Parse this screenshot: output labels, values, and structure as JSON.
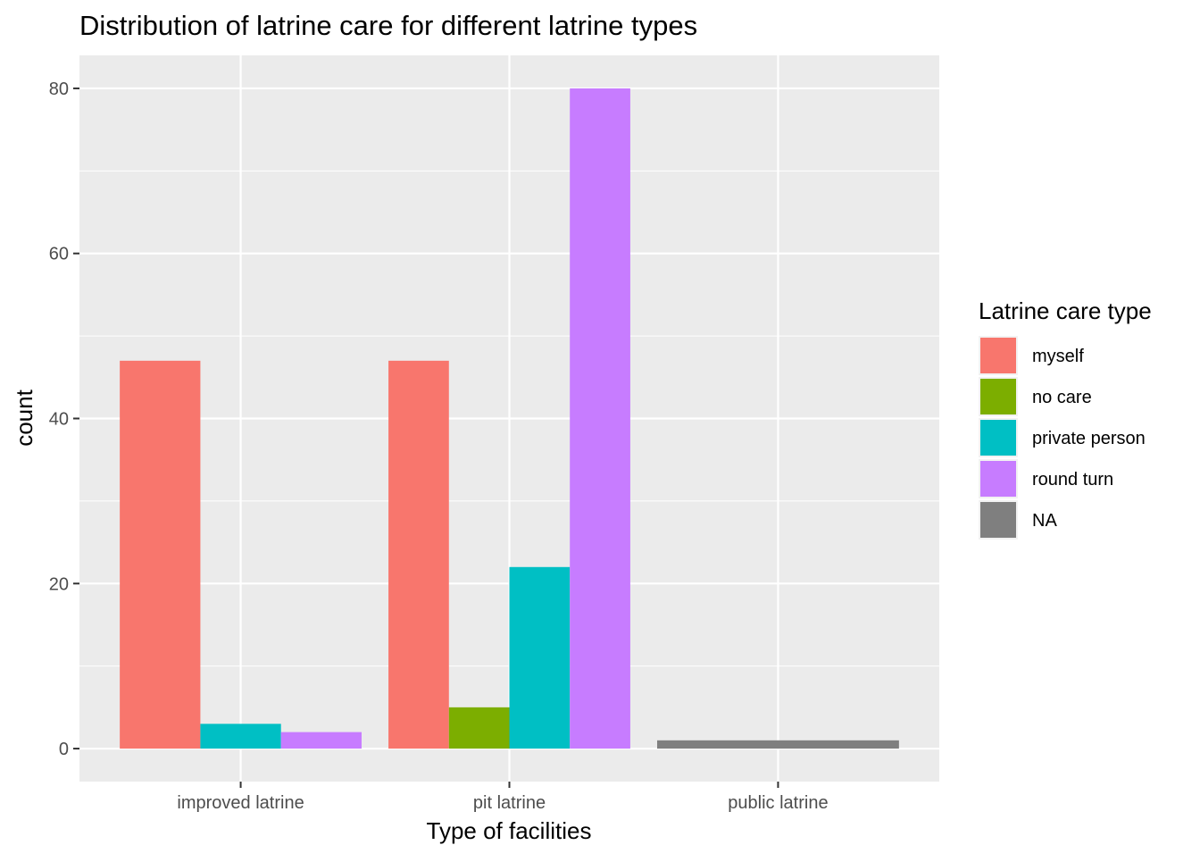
{
  "chart_data": {
    "type": "bar",
    "title": "Distribution of latrine care for different latrine types",
    "xlabel": "Type of facilities",
    "ylabel": "count",
    "ylim": [
      -4,
      84
    ],
    "yticks": [
      0,
      20,
      40,
      60,
      80
    ],
    "grid": true,
    "legend_position": "right",
    "legend_title": "Latrine care type",
    "categories": [
      "improved latrine",
      "pit latrine",
      "public latrine"
    ],
    "series": [
      {
        "name": "myself",
        "color": "#F8766D"
      },
      {
        "name": "no care",
        "color": "#7CAE00"
      },
      {
        "name": "private person",
        "color": "#00BFC4"
      },
      {
        "name": "round turn",
        "color": "#C77CFF"
      },
      {
        "name": "NA",
        "color": "#7F7F7F"
      }
    ],
    "groups": [
      {
        "category": "improved latrine",
        "bars": [
          {
            "series": "myself",
            "value": 47
          },
          {
            "series": "private person",
            "value": 3
          },
          {
            "series": "round turn",
            "value": 2
          }
        ]
      },
      {
        "category": "pit latrine",
        "bars": [
          {
            "series": "myself",
            "value": 47
          },
          {
            "series": "no care",
            "value": 5
          },
          {
            "series": "private person",
            "value": 22
          },
          {
            "series": "round turn",
            "value": 80
          }
        ]
      },
      {
        "category": "public latrine",
        "bars": [
          {
            "series": "NA",
            "value": 1
          }
        ]
      }
    ]
  }
}
